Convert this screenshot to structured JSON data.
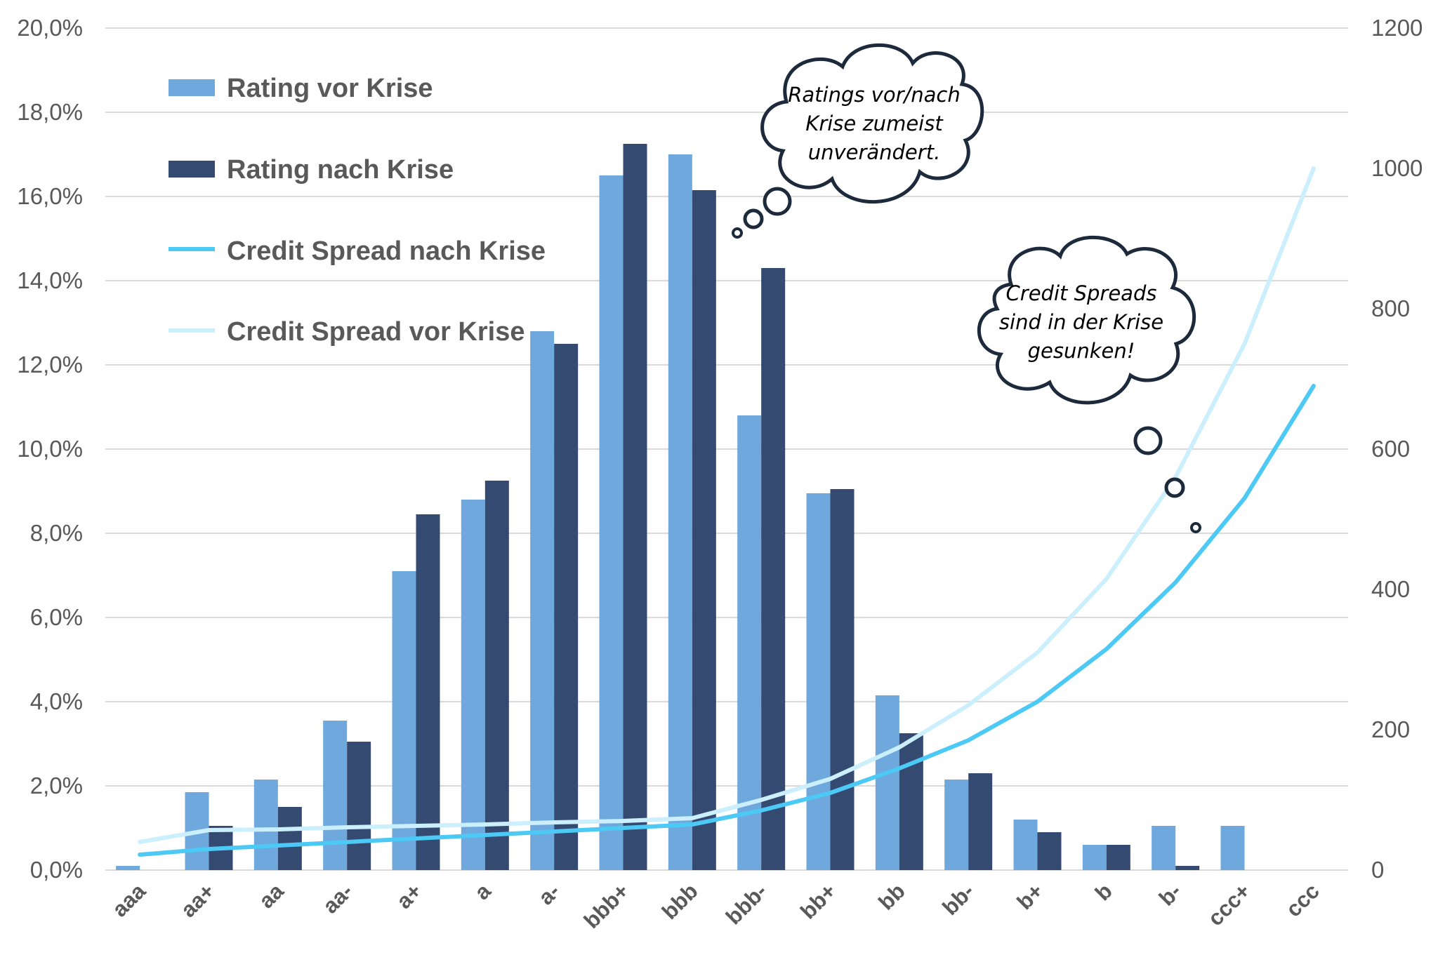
{
  "chart_data": {
    "type": "bar",
    "categories": [
      "aaa",
      "aa+",
      "aa",
      "aa-",
      "a+",
      "a",
      "a-",
      "bbb+",
      "bbb",
      "bbb-",
      "bb+",
      "bb",
      "bb-",
      "b+",
      "b",
      "b-",
      "ccc+",
      "ccc"
    ],
    "series": [
      {
        "name": "Rating vor Krise",
        "type": "bar",
        "axis": "left",
        "color": "#6FA8DC",
        "values": [
          0.1,
          1.85,
          2.15,
          3.55,
          7.1,
          8.8,
          12.8,
          16.5,
          17.0,
          10.8,
          8.95,
          4.15,
          2.15,
          1.2,
          0.6,
          1.05,
          1.05,
          0.0
        ]
      },
      {
        "name": "Rating nach Krise",
        "type": "bar",
        "axis": "left",
        "color": "#354A70",
        "values": [
          0.0,
          1.05,
          1.5,
          3.05,
          8.45,
          9.25,
          12.5,
          17.25,
          16.15,
          14.3,
          9.05,
          3.25,
          2.3,
          0.9,
          0.6,
          0.1,
          0.0,
          0.0
        ]
      },
      {
        "name": "Credit Spread nach Krise",
        "type": "line",
        "axis": "right",
        "color": "#4CC9F5",
        "values": [
          22,
          30,
          35,
          40,
          45,
          50,
          55,
          60,
          65,
          85,
          110,
          145,
          185,
          240,
          315,
          410,
          530,
          690
        ]
      },
      {
        "name": "Credit Spread vor Krise",
        "type": "line",
        "axis": "right",
        "color": "#CBEFFC",
        "values": [
          40,
          57,
          58,
          61,
          63,
          65,
          68,
          70,
          74,
          100,
          130,
          175,
          235,
          310,
          415,
          560,
          750,
          1000
        ]
      }
    ],
    "y_left": {
      "min": 0,
      "max": 20,
      "ticks": [
        "0,0%",
        "2,0%",
        "4,0%",
        "6,0%",
        "8,0%",
        "10,0%",
        "12,0%",
        "14,0%",
        "16,0%",
        "18,0%",
        "20,0%"
      ]
    },
    "y_right": {
      "min": 0,
      "max": 1200,
      "ticks": [
        "0",
        "200",
        "400",
        "600",
        "800",
        "1000",
        "1200"
      ]
    },
    "grid": true,
    "legend_position": "top-left",
    "annotations": [
      {
        "lines": [
          "Ratings vor/nach",
          "Krise zumeist",
          "unverändert."
        ]
      },
      {
        "lines": [
          "Credit Spreads",
          "sind in der Krise",
          "gesunken!"
        ]
      }
    ]
  }
}
